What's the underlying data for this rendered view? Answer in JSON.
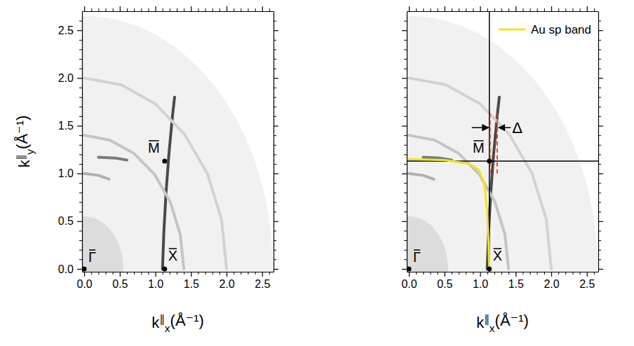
{
  "chart_data": [
    {
      "type": "map",
      "x_label": "k∥x(Å⁻¹)",
      "y_label": "k∥y(Å⁻¹)",
      "xlim": [
        -0.03,
        2.66
      ],
      "ylim": [
        -0.03,
        2.7
      ],
      "xticks": [
        {
          "value": 0,
          "label": "0.0"
        },
        {
          "value": 0.5,
          "label": "0.5"
        },
        {
          "value": 1,
          "label": "1.0"
        },
        {
          "value": 1.5,
          "label": "1.5"
        },
        {
          "value": 2,
          "label": "2.0"
        },
        {
          "value": 2.5,
          "label": "2.5"
        }
      ],
      "yticks": [
        {
          "value": 0,
          "label": "0.0"
        },
        {
          "value": 0.5,
          "label": "0.5"
        },
        {
          "value": 1,
          "label": "1.0"
        },
        {
          "value": 1.5,
          "label": "1.5"
        },
        {
          "value": 2,
          "label": "2.0"
        },
        {
          "value": 2.5,
          "label": "2.5"
        }
      ],
      "minor_xticks": [
        0.1,
        0.2,
        0.3,
        0.4,
        0.6,
        0.7,
        0.8,
        0.9,
        1.1,
        1.2,
        1.3,
        1.4,
        1.6,
        1.7,
        1.8,
        1.9,
        2.1,
        2.2,
        2.3,
        2.4,
        2.6
      ],
      "minor_yticks": [
        0.1,
        0.2,
        0.3,
        0.4,
        0.6,
        0.7,
        0.8,
        0.9,
        1.1,
        1.2,
        1.3,
        1.4,
        1.6,
        1.7,
        1.8,
        1.9,
        2.1,
        2.2,
        2.3,
        2.4,
        2.6
      ],
      "map_radius": 2.65,
      "inner_radius": 0.55,
      "series": [
        {
          "color": "#4a4a4a",
          "x": [
            1.1,
            1.12,
            1.15,
            1.19,
            1.24,
            1.27
          ],
          "values": [
            0,
            0.4,
            0.8,
            1.2,
            1.6,
            1.8
          ]
        },
        {
          "color": "#7a7a7a",
          "x": [
            0.2,
            0.45,
            0.6
          ],
          "values": [
            1.17,
            1.16,
            1.14
          ]
        },
        {
          "color": "#b0b0b0",
          "x": [
            0,
            0.2,
            0.35
          ],
          "values": [
            1.0,
            0.98,
            0.94
          ]
        },
        {
          "color": "#c4c4c4",
          "x": [
            0,
            0.36,
            0.7,
            0.99,
            1.21,
            1.35,
            1.4
          ],
          "values": [
            1.4,
            1.35,
            1.21,
            0.99,
            0.7,
            0.36,
            0
          ]
        },
        {
          "color": "#d2d2d2",
          "x": [
            0,
            0.52,
            1.0,
            1.41,
            1.73,
            1.93,
            2.0
          ],
          "values": [
            2.0,
            1.93,
            1.73,
            1.41,
            1.0,
            0.52,
            0
          ]
        }
      ],
      "points": {
        "labels": [
          "Γ",
          "X",
          "M"
        ],
        "x": [
          0,
          1.13,
          1.13
        ],
        "values": [
          0,
          0,
          1.13
        ]
      }
    },
    {
      "type": "map",
      "x_label": "k∥x(Å⁻¹)",
      "tick_labels": "x",
      "legend": "top-right",
      "xlim": [
        -0.03,
        2.66
      ],
      "ylim": [
        -0.03,
        2.7
      ],
      "xticks": [
        {
          "value": 0,
          "label": "0.0"
        },
        {
          "value": 0.5,
          "label": "0.5"
        },
        {
          "value": 1,
          "label": "1.0"
        },
        {
          "value": 1.5,
          "label": "1.5"
        },
        {
          "value": 2,
          "label": "2.0"
        },
        {
          "value": 2.5,
          "label": "2.5"
        }
      ],
      "yticks": [
        0,
        0.5,
        1,
        1.5,
        2,
        2.5
      ],
      "minor_xticks": [
        0.1,
        0.2,
        0.3,
        0.4,
        0.6,
        0.7,
        0.8,
        0.9,
        1.1,
        1.2,
        1.3,
        1.4,
        1.6,
        1.7,
        1.8,
        1.9,
        2.1,
        2.2,
        2.3,
        2.4,
        2.6
      ],
      "minor_yticks": [
        0.1,
        0.2,
        0.3,
        0.4,
        0.6,
        0.7,
        0.8,
        0.9,
        1.1,
        1.2,
        1.3,
        1.4,
        1.6,
        1.7,
        1.8,
        1.9,
        2.1,
        2.2,
        2.3,
        2.4,
        2.6
      ],
      "map_radius": 2.65,
      "inner_radius": 0.55,
      "series": [
        {
          "color": "#4a4a4a",
          "x": [
            1.1,
            1.12,
            1.15,
            1.19,
            1.24,
            1.27
          ],
          "values": [
            0,
            0.4,
            0.8,
            1.2,
            1.6,
            1.8
          ]
        },
        {
          "color": "#7a7a7a",
          "x": [
            0.2,
            0.45,
            0.6
          ],
          "values": [
            1.17,
            1.16,
            1.14
          ]
        },
        {
          "color": "#b0b0b0",
          "x": [
            0,
            0.2,
            0.35
          ],
          "values": [
            1.0,
            0.98,
            0.94
          ]
        },
        {
          "color": "#c4c4c4",
          "x": [
            0,
            0.36,
            0.7,
            0.99,
            1.21,
            1.35,
            1.4
          ],
          "values": [
            1.4,
            1.35,
            1.21,
            0.99,
            0.7,
            0.36,
            0
          ]
        },
        {
          "color": "#d2d2d2",
          "x": [
            0,
            0.52,
            1.0,
            1.41,
            1.73,
            1.93,
            2.0
          ],
          "values": [
            2.0,
            1.93,
            1.73,
            1.41,
            1.0,
            0.52,
            0
          ]
        },
        {
          "name": "Au sp band",
          "color": "#f2e41c",
          "x": [
            0,
            0.5,
            0.85,
            0.98,
            1.06,
            1.1,
            1.12,
            1.13
          ],
          "values": [
            1.15,
            1.14,
            1.1,
            1.04,
            0.9,
            0.6,
            0.25,
            0
          ]
        }
      ],
      "reference_lines": {
        "color": "#000000",
        "x": [
          1.13
        ],
        "y": [
          1.13
        ]
      },
      "dashed_lines": {
        "color": "#e8322e",
        "line_style": "dashed",
        "x": [
          1.14,
          1.24
        ],
        "y": [
          1.0,
          1.65
        ]
      },
      "annotations": [
        {
          "text": "Δ",
          "x": 1.45,
          "y": 1.48
        }
      ],
      "points": {
        "labels": [
          "Γ",
          "X",
          "M"
        ],
        "x": [
          0,
          1.13,
          1.13
        ],
        "values": [
          0,
          0,
          1.13
        ]
      }
    }
  ]
}
